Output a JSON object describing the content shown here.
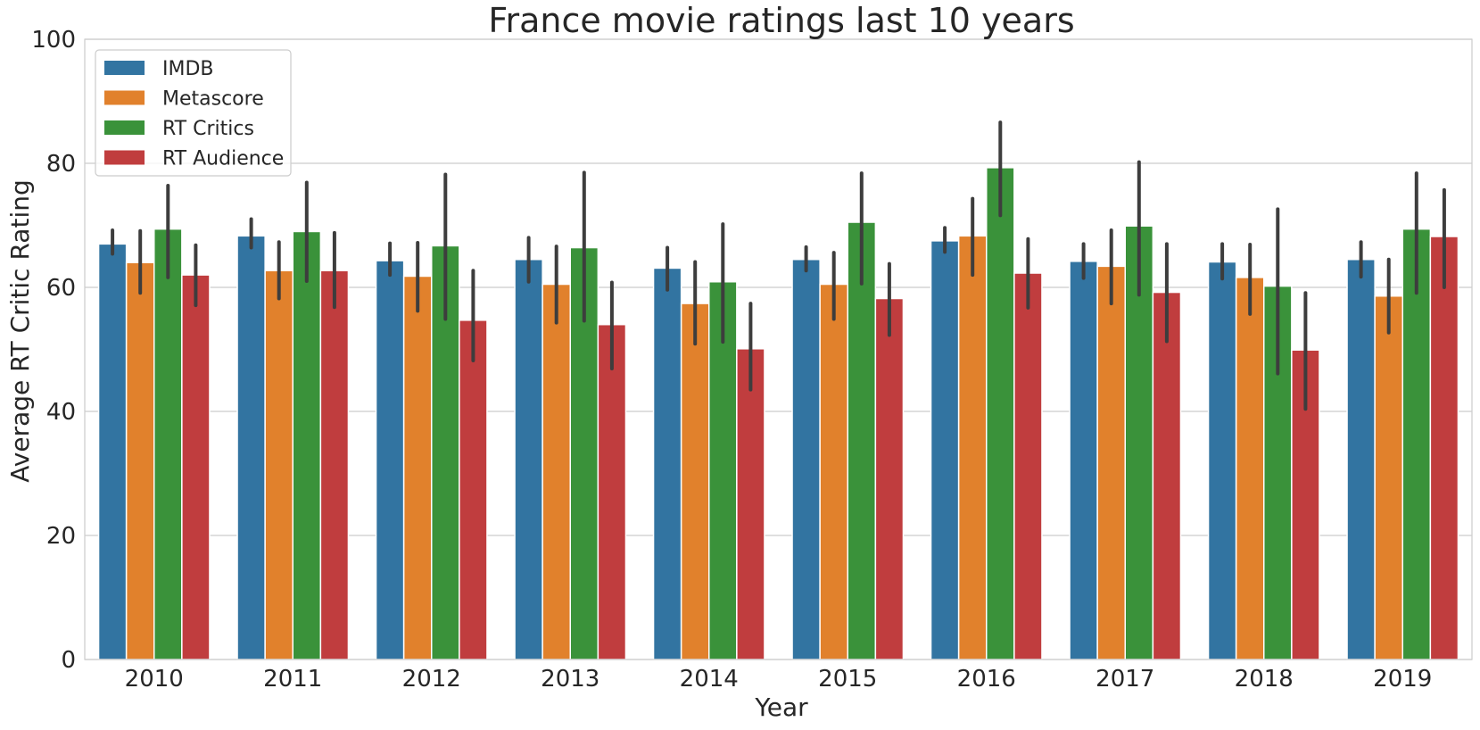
{
  "chart_data": {
    "type": "bar",
    "title": "France movie ratings last 10 years",
    "xlabel": "Year",
    "ylabel": "Average RT Critic Rating",
    "ylim": [
      0,
      100
    ],
    "yticks": [
      0,
      20,
      40,
      60,
      80,
      100
    ],
    "grid": "horizontal",
    "legend_position": "top-left",
    "categories": [
      "2010",
      "2011",
      "2012",
      "2013",
      "2014",
      "2015",
      "2016",
      "2017",
      "2018",
      "2019"
    ],
    "series": [
      {
        "name": "IMDB",
        "color": "#3274a1",
        "values": [
          67.0,
          68.3,
          64.3,
          64.5,
          63.1,
          64.5,
          67.5,
          64.2,
          64.1,
          64.5
        ],
        "ci_low": [
          65.4,
          66.4,
          62.0,
          60.9,
          59.6,
          62.7,
          65.7,
          61.5,
          61.4,
          61.7
        ],
        "ci_high": [
          69.2,
          71.0,
          67.1,
          68.0,
          66.4,
          66.5,
          69.6,
          67.0,
          67.0,
          67.3
        ]
      },
      {
        "name": "Metascore",
        "color": "#e1812c",
        "values": [
          64.0,
          62.7,
          61.8,
          60.5,
          57.4,
          60.5,
          68.3,
          63.4,
          61.6,
          58.6
        ],
        "ci_low": [
          59.1,
          58.2,
          56.2,
          54.3,
          50.9,
          54.9,
          62.0,
          57.4,
          55.7,
          52.7
        ],
        "ci_high": [
          69.1,
          67.3,
          67.2,
          66.6,
          64.1,
          65.6,
          74.3,
          69.2,
          66.9,
          64.5
        ]
      },
      {
        "name": "RT Critics",
        "color": "#3a923a",
        "values": [
          69.4,
          69.0,
          66.7,
          66.4,
          60.9,
          70.5,
          79.3,
          69.9,
          60.2,
          69.4
        ],
        "ci_low": [
          61.6,
          61.0,
          54.9,
          54.6,
          51.2,
          60.6,
          71.6,
          58.8,
          46.1,
          59.1
        ],
        "ci_high": [
          76.4,
          76.9,
          78.2,
          78.5,
          70.2,
          78.4,
          86.6,
          80.2,
          72.6,
          78.4
        ]
      },
      {
        "name": "RT Audience",
        "color": "#c03d3e",
        "values": [
          62.0,
          62.7,
          54.7,
          54.0,
          50.1,
          58.2,
          62.3,
          59.2,
          49.9,
          68.2
        ],
        "ci_low": [
          57.1,
          56.8,
          48.2,
          46.9,
          43.5,
          52.3,
          56.7,
          51.3,
          40.4,
          60.0
        ],
        "ci_high": [
          66.8,
          68.8,
          62.7,
          60.8,
          57.4,
          63.8,
          67.8,
          67.0,
          59.1,
          75.7
        ]
      }
    ]
  }
}
